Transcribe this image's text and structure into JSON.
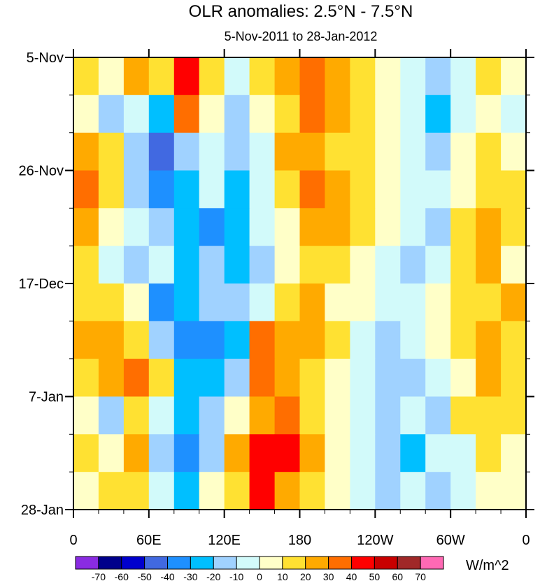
{
  "chart_data": {
    "type": "heatmap",
    "title": "OLR anomalies: 2.5°N - 7.5°N",
    "subtitle": "5-Nov-2011 to 28-Jan-2012",
    "x_ticks": [
      "0",
      "60E",
      "120E",
      "180",
      "120W",
      "60W",
      "0"
    ],
    "y_ticks": [
      "5-Nov",
      "26-Nov",
      "17-Dec",
      "7-Jan",
      "28-Jan"
    ],
    "x_range_deg_east": [
      0,
      360
    ],
    "y_range_days": [
      0,
      84
    ],
    "colorbar": {
      "unit": "W/m^2",
      "levels": [
        -70,
        -60,
        -50,
        -40,
        -30,
        -20,
        -10,
        0,
        10,
        20,
        30,
        40,
        50,
        60,
        70
      ],
      "level_labels": [
        "-70",
        "-60",
        "-50",
        "-40",
        "-30",
        "-20",
        "-10",
        "0",
        "10",
        "20",
        "30",
        "40",
        "50",
        "60",
        "70"
      ],
      "colors": [
        "#8a2be2",
        "#00008b",
        "#0000cd",
        "#4169e1",
        "#1e90ff",
        "#00bfff",
        "#a0d2ff",
        "#d2fafa",
        "#ffffc8",
        "#ffe132",
        "#ffaa00",
        "#ff6e00",
        "#ff0000",
        "#c80000",
        "#a02828",
        "#ff69b4"
      ]
    },
    "grid_note_lon_step_deg": 20,
    "values": [
      [
        10,
        0,
        20,
        10,
        40,
        10,
        -10,
        10,
        20,
        30,
        20,
        10,
        0,
        -10,
        -20,
        -10,
        10,
        0
      ],
      [
        0,
        -20,
        -10,
        -30,
        30,
        0,
        -20,
        0,
        10,
        30,
        20,
        10,
        0,
        -10,
        -30,
        -10,
        0,
        -10
      ],
      [
        20,
        10,
        -20,
        -50,
        -20,
        -10,
        -20,
        -10,
        20,
        20,
        10,
        10,
        0,
        -10,
        -20,
        0,
        10,
        0
      ],
      [
        30,
        10,
        -20,
        -40,
        -30,
        -10,
        -30,
        -10,
        10,
        30,
        20,
        10,
        0,
        -10,
        -10,
        0,
        10,
        10
      ],
      [
        20,
        0,
        -10,
        -20,
        -30,
        -40,
        -30,
        -10,
        0,
        20,
        20,
        10,
        0,
        -10,
        -20,
        10,
        20,
        10
      ],
      [
        10,
        -10,
        -20,
        -10,
        -30,
        -20,
        -30,
        -20,
        0,
        10,
        10,
        0,
        -10,
        -20,
        -10,
        10,
        20,
        0
      ],
      [
        10,
        10,
        0,
        -40,
        -30,
        -20,
        -20,
        -10,
        10,
        20,
        0,
        0,
        -10,
        -10,
        0,
        10,
        10,
        20
      ],
      [
        20,
        20,
        10,
        -20,
        -40,
        -40,
        -30,
        30,
        20,
        20,
        10,
        -10,
        -20,
        -10,
        0,
        10,
        20,
        10
      ],
      [
        10,
        20,
        30,
        10,
        -30,
        -30,
        -20,
        30,
        20,
        10,
        0,
        -10,
        -20,
        -20,
        -10,
        0,
        20,
        10
      ],
      [
        0,
        -20,
        10,
        -10,
        -30,
        -20,
        0,
        20,
        30,
        10,
        0,
        -10,
        -20,
        -10,
        -20,
        10,
        10,
        10
      ],
      [
        10,
        0,
        20,
        -20,
        -40,
        -20,
        20,
        40,
        40,
        20,
        0,
        -10,
        -20,
        -30,
        -10,
        -10,
        10,
        0
      ],
      [
        0,
        10,
        10,
        -10,
        -30,
        0,
        10,
        40,
        20,
        10,
        0,
        -10,
        -20,
        -10,
        -20,
        -10,
        0,
        0
      ]
    ]
  }
}
